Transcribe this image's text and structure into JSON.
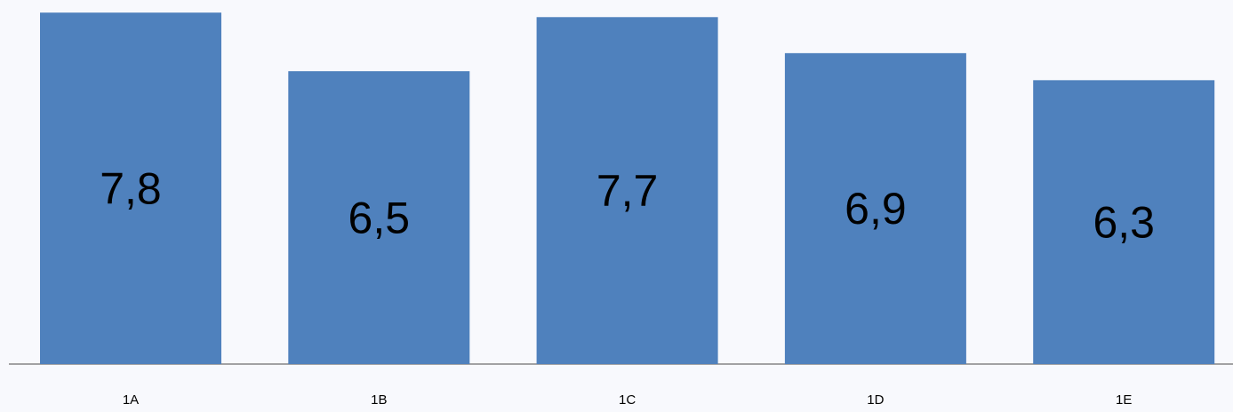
{
  "chart_data": {
    "type": "bar",
    "categories": [
      "1A",
      "1B",
      "1C",
      "1D",
      "1E"
    ],
    "values": [
      7.8,
      6.5,
      7.7,
      6.9,
      6.3
    ],
    "value_labels": [
      "7,8",
      "6,5",
      "7,7",
      "6,9",
      "6,3"
    ],
    "color": "#4f81bd",
    "ylim": [
      0,
      8.08
    ]
  }
}
